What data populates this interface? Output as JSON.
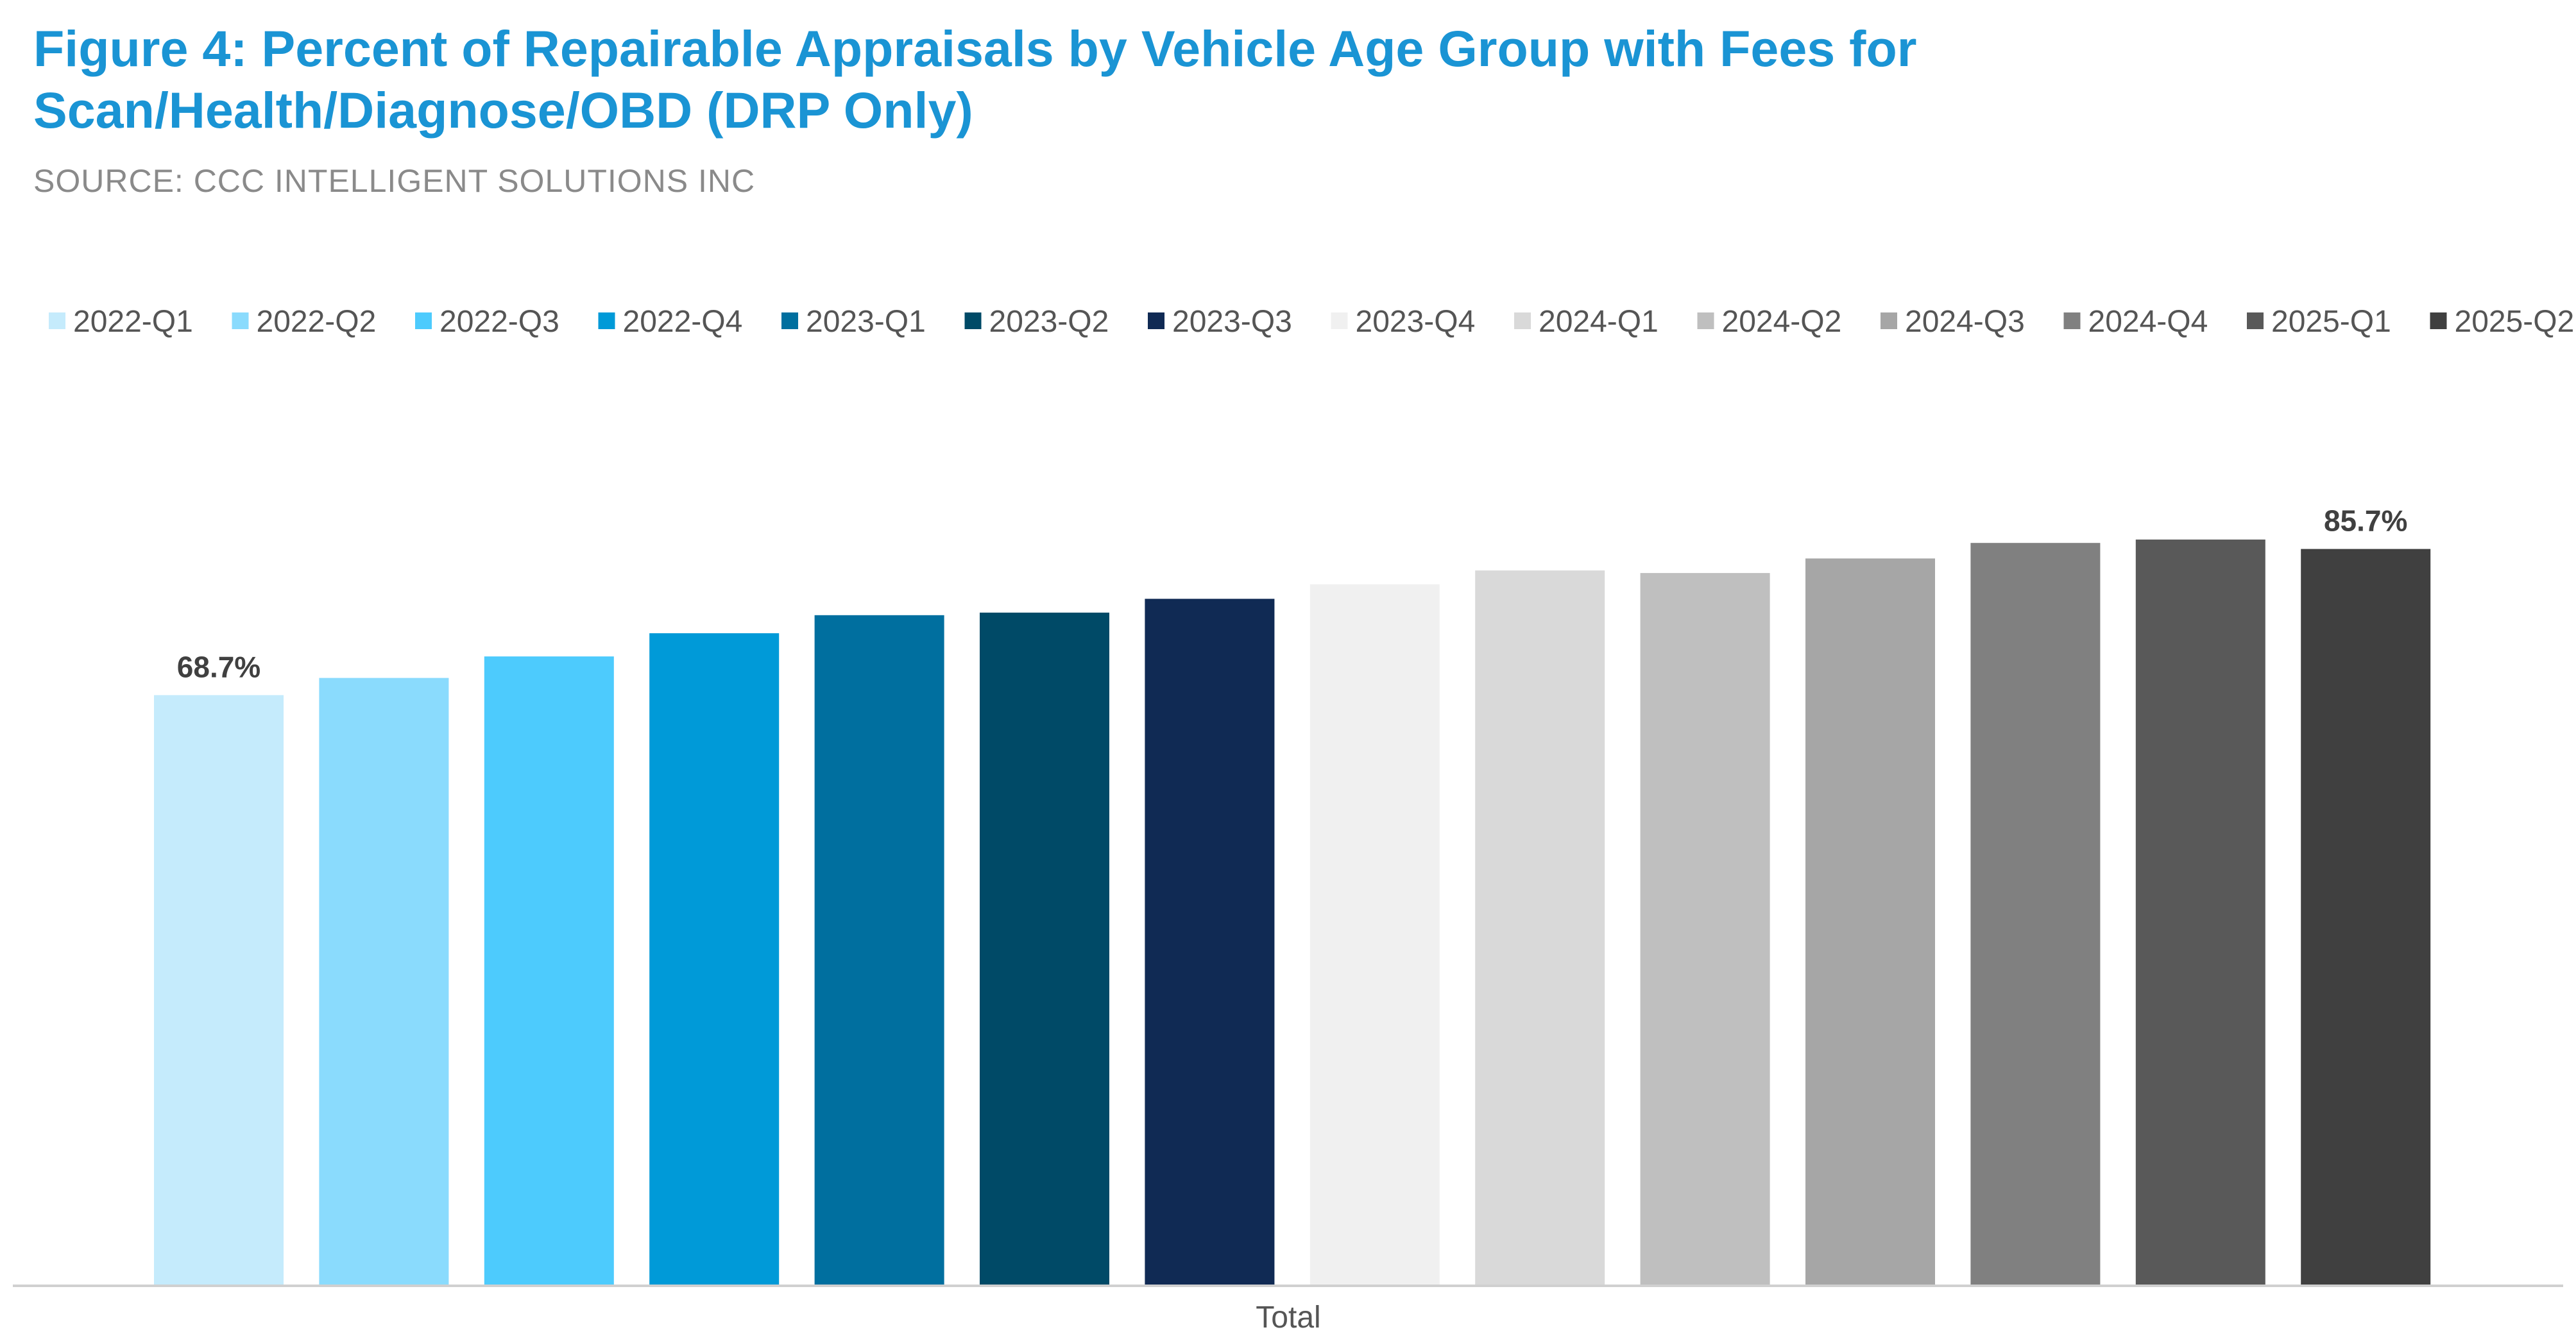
{
  "header": {
    "title": "Figure 4: Percent of Repairable Appraisals by Vehicle Age Group with Fees for Scan/Health/Diagnose/OBD (DRP Only)",
    "source": "SOURCE: CCC INTELLIGENT SOLUTIONS INC"
  },
  "chart_data": {
    "type": "bar",
    "title": "Figure 4: Percent of Repairable Appraisals by Vehicle Age Group with Fees for Scan/Health/Diagnose/OBD (DRP Only)",
    "subtitle": "SOURCE: CCC INTELLIGENT SOLUTIONS INC",
    "categories": [
      "Total"
    ],
    "xlabel": "",
    "ylabel": "",
    "ylim": [
      0,
      100
    ],
    "grid": false,
    "legend_position": "top",
    "value_unit": "%",
    "series": [
      {
        "name": "2022-Q1",
        "values": [
          68.7
        ],
        "color": "#c5ebfc",
        "label": "68.7%"
      },
      {
        "name": "2022-Q2",
        "values": [
          70.7
        ],
        "color": "#8adbfd",
        "label": null
      },
      {
        "name": "2022-Q3",
        "values": [
          73.2
        ],
        "color": "#4dcbfd",
        "label": null
      },
      {
        "name": "2022-Q4",
        "values": [
          75.9
        ],
        "color": "#009ad8",
        "label": null
      },
      {
        "name": "2023-Q1",
        "values": [
          78.0
        ],
        "color": "#006f9f",
        "label": null
      },
      {
        "name": "2023-Q2",
        "values": [
          78.3
        ],
        "color": "#004a67",
        "label": null
      },
      {
        "name": "2023-Q3",
        "values": [
          79.9
        ],
        "color": "#102a54",
        "label": null
      },
      {
        "name": "2023-Q4",
        "values": [
          81.6
        ],
        "color": "#f0f0f0",
        "label": null
      },
      {
        "name": "2024-Q1",
        "values": [
          83.2
        ],
        "color": "#d9d9d9",
        "label": null
      },
      {
        "name": "2024-Q2",
        "values": [
          82.9
        ],
        "color": "#bfbfbf",
        "label": null
      },
      {
        "name": "2024-Q3",
        "values": [
          84.6
        ],
        "color": "#a6a6a6",
        "label": null
      },
      {
        "name": "2024-Q4",
        "values": [
          86.4
        ],
        "color": "#808080",
        "label": null
      },
      {
        "name": "2025-Q1",
        "values": [
          86.8
        ],
        "color": "#595959",
        "label": null
      },
      {
        "name": "2025-Q2",
        "values": [
          85.7
        ],
        "color": "#404040",
        "label": "85.7%"
      }
    ]
  }
}
